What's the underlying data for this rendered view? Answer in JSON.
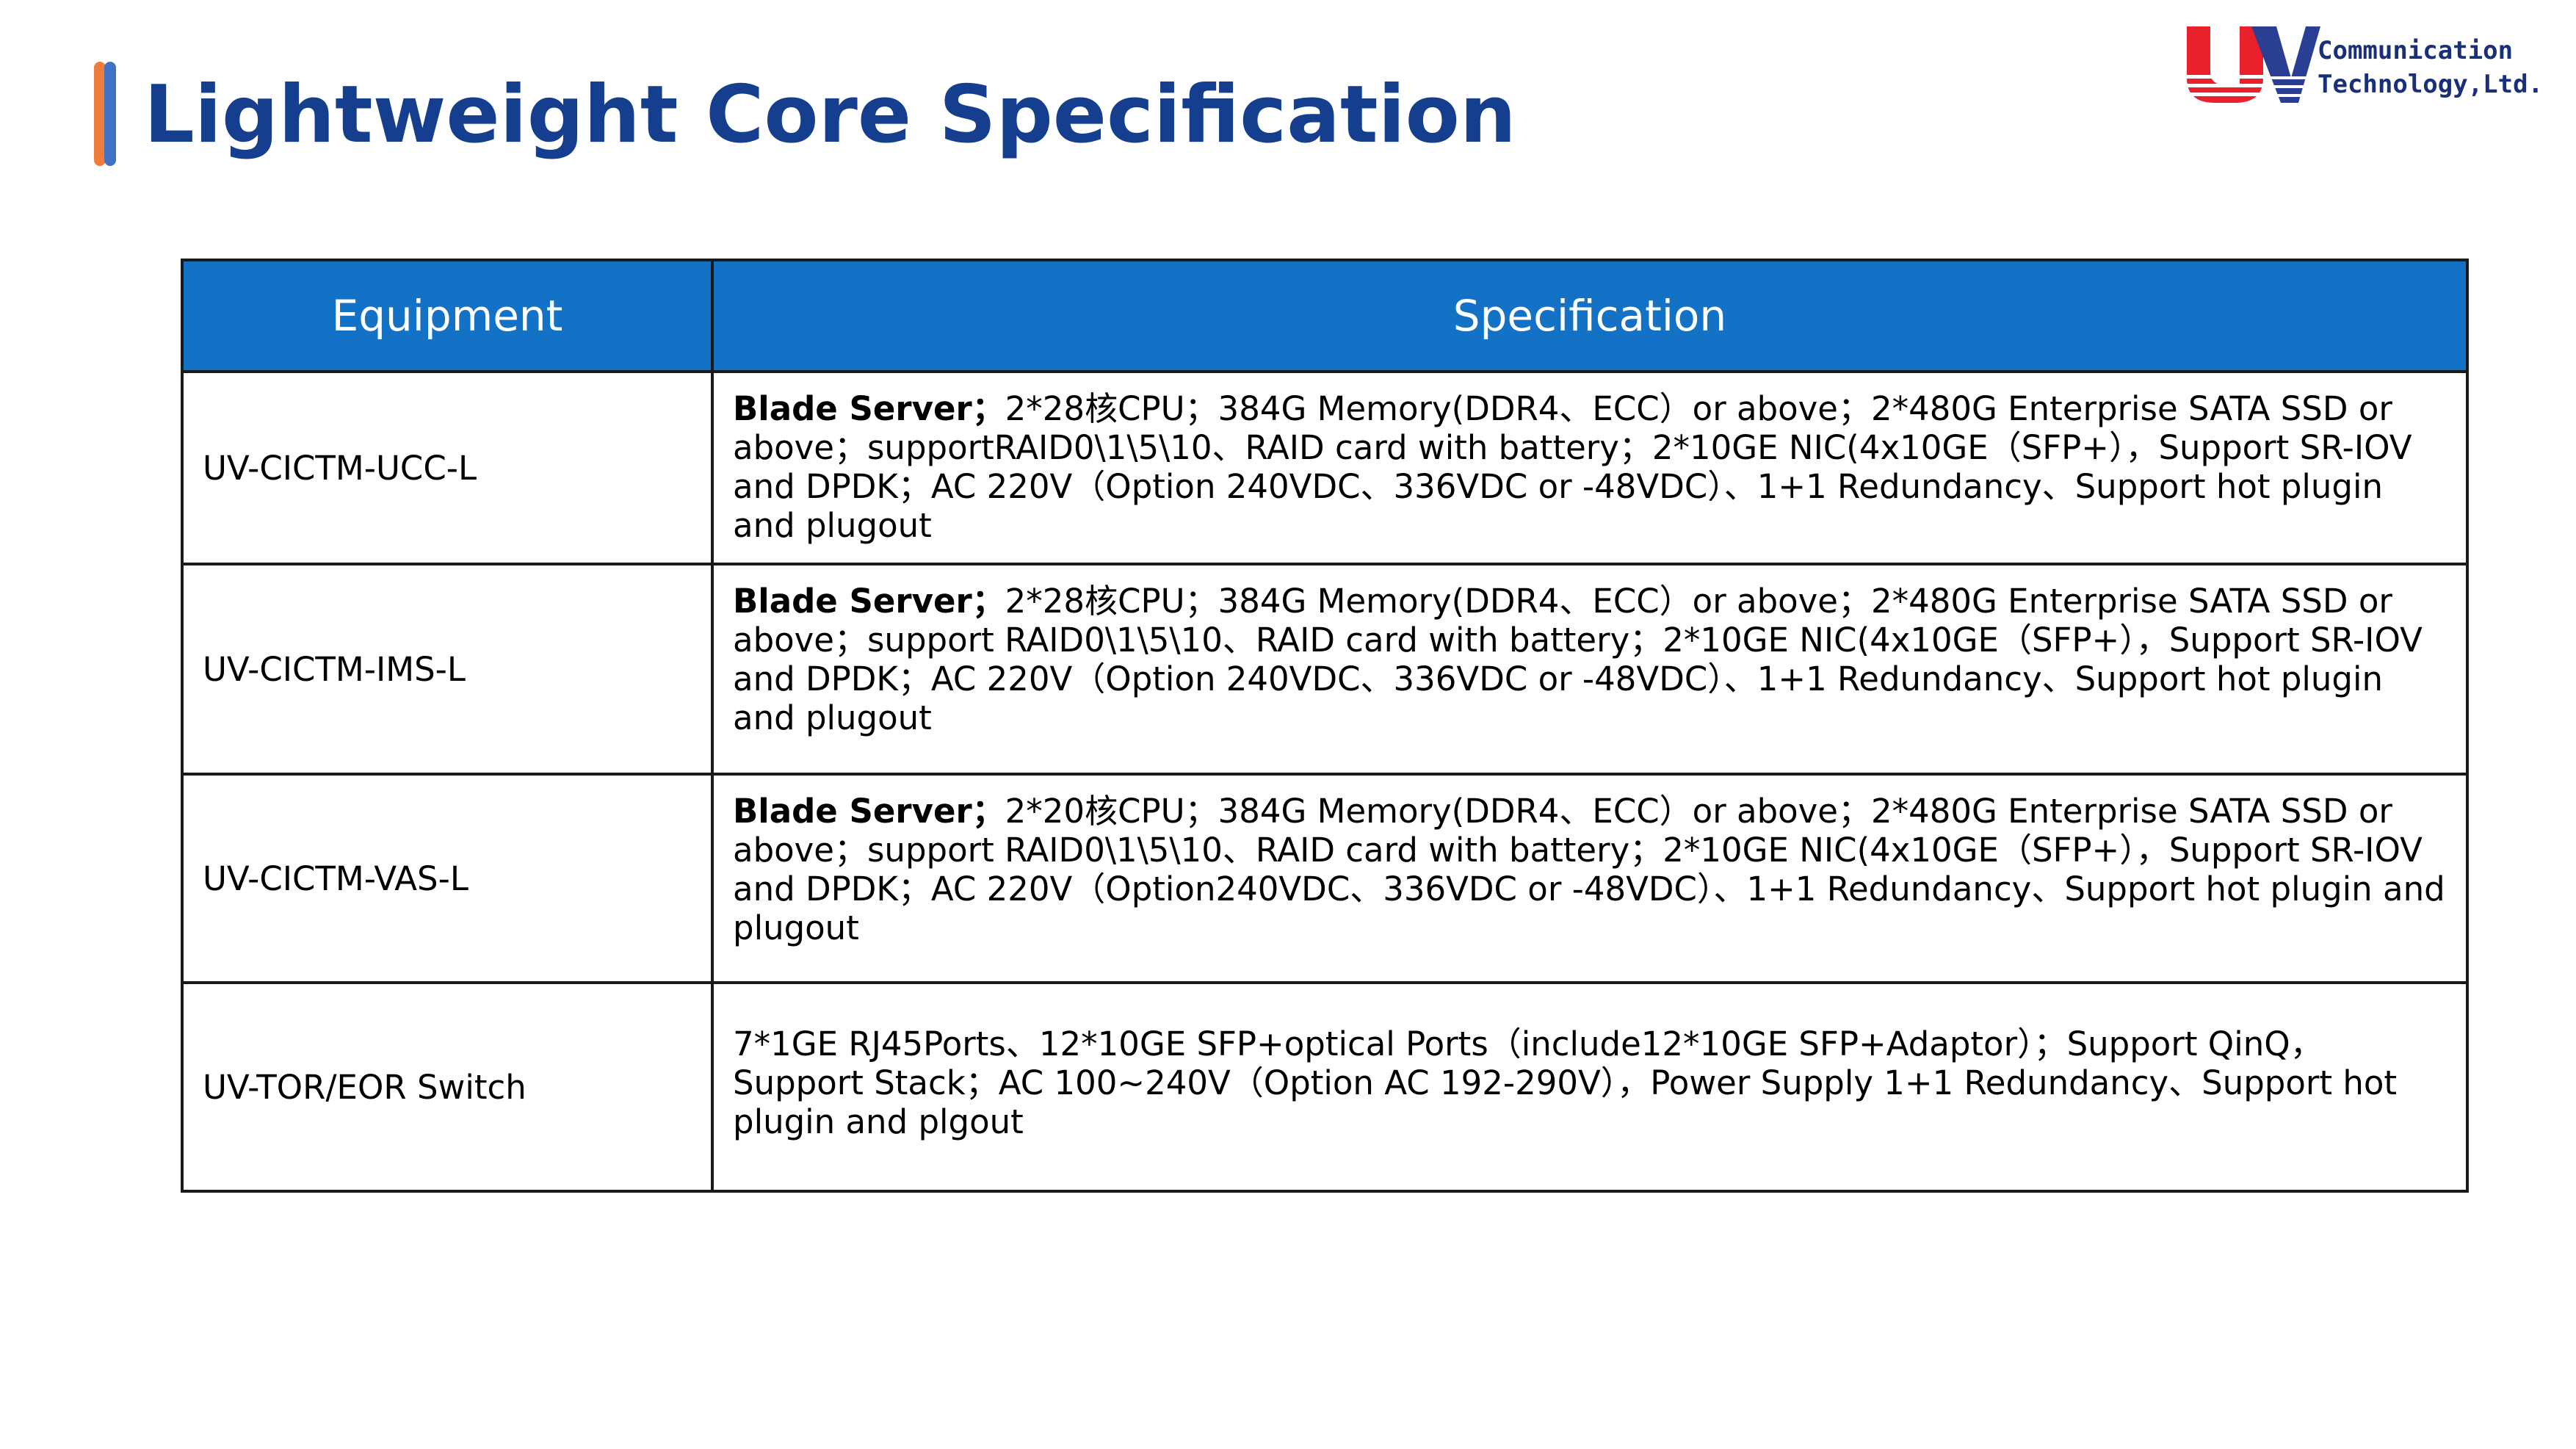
{
  "title": "Lightweight Core Specification",
  "logo": {
    "line1": "Communication",
    "line2": "Technology,Ltd.",
    "colors": {
      "red": "#e8212b",
      "blue": "#2a3f94"
    }
  },
  "table": {
    "headers": {
      "equipment": "Equipment",
      "specification": "Specification"
    },
    "header_color": "#1372c5",
    "rows": [
      {
        "equipment": "UV-CICTM-UCC-L",
        "spec_prefix": "Blade Server；",
        "spec_text": "2*28核CPU；384G Memory(DDR4、ECC）or above；2*480G Enterprise SATA SSD or above；supportRAID0\\1\\5\\10、RAID card with battery；2*10GE NIC(4x10GE（SFP+），Support SR-IOV and DPDK；AC 220V（Option 240VDC、336VDC or -48VDC）、1+1 Redundancy、Support hot plugin and plugout"
      },
      {
        "equipment": "UV-CICTM-IMS-L",
        "spec_prefix": "Blade Server；",
        "spec_text": "2*28核CPU；384G Memory(DDR4、ECC）or above；2*480G Enterprise SATA SSD or above；support RAID0\\1\\5\\10、RAID card with battery；2*10GE NIC(4x10GE（SFP+），Support SR-IOV and DPDK；AC 220V（Option 240VDC、336VDC or -48VDC）、1+1 Redundancy、Support hot plugin and plugout"
      },
      {
        "equipment": "UV-CICTM-VAS-L",
        "spec_prefix": "Blade Server；",
        "spec_text": "2*20核CPU；384G Memory(DDR4、ECC）or above；2*480G Enterprise SATA SSD or above；support RAID0\\1\\5\\10、RAID card with battery；2*10GE NIC(4x10GE（SFP+），Support SR-IOV and DPDK；AC 220V（Option240VDC、336VDC or -48VDC）、1+1 Redundancy、Support hot plugin and plugout"
      },
      {
        "equipment": "UV-TOR/EOR Switch",
        "spec_prefix": "",
        "spec_text": "7*1GE RJ45Ports、12*10GE SFP+optical Ports（include12*10GE SFP+Adaptor）；Support QinQ，Support Stack；AC 100~240V（Option AC 192-290V），Power Supply 1+1 Redundancy、Support hot plugin and plgout"
      }
    ]
  }
}
